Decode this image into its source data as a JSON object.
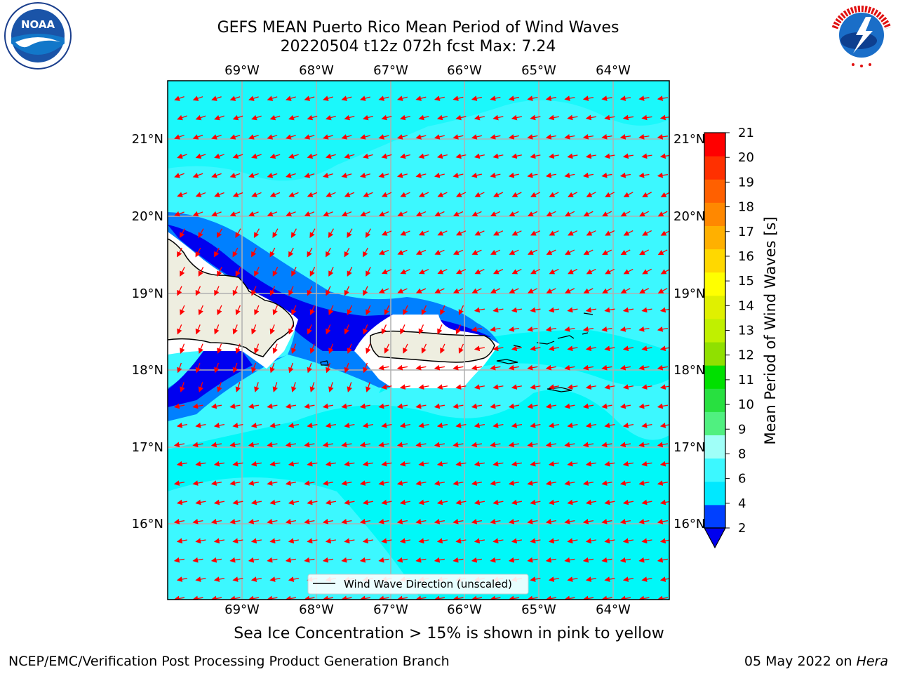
{
  "header": {
    "title_line1": "GEFS MEAN Puerto Rico Mean Period of Wind Waves",
    "title_line2": "20220504 t12z 072h fcst   Max: 7.24"
  },
  "map": {
    "lon_labels": [
      "69°W",
      "68°W",
      "67°W",
      "66°W",
      "65°W",
      "64°W"
    ],
    "lat_labels": [
      "21°N",
      "20°N",
      "19°N",
      "18°N",
      "17°N",
      "16°N"
    ],
    "legend_text": "Wind Wave Direction (unscaled)",
    "colors": {
      "ocean_light": "#00f8f8",
      "ocean_pale": "#3ff8ff",
      "band_mid": "#0080ff",
      "band_dark": "#0000f0",
      "land": "#eeeee0",
      "arrow": "#ff0000",
      "grid": "#b0b0b0"
    }
  },
  "colorbar": {
    "label": "Mean Period of Wind Waves [s]",
    "ticks": [
      "2",
      "4",
      "6",
      "8",
      "9",
      "10",
      "11",
      "12",
      "13",
      "14",
      "15",
      "16",
      "17",
      "18",
      "19",
      "20",
      "21"
    ],
    "colors": [
      "#0040ff",
      "#00e8ff",
      "#3cf8ff",
      "#a0fff8",
      "#50f080",
      "#28e040",
      "#00e000",
      "#90e000",
      "#c0f000",
      "#e0f000",
      "#ffff00",
      "#ffd800",
      "#ffb000",
      "#ff8800",
      "#ff6000",
      "#ff3000",
      "#ff0000"
    ],
    "under_color": "#0000ee"
  },
  "footer": {
    "note": "Sea Ice Concentration > 15% is shown in pink to yellow",
    "credit": "NCEP/EMC/Verification Post Processing Product Generation Branch",
    "date": "05 May 2022 on",
    "machine": "Hera"
  },
  "logos": {
    "noaa": "NOAA",
    "nws": "NATIONAL WEATHER SERVICE"
  }
}
